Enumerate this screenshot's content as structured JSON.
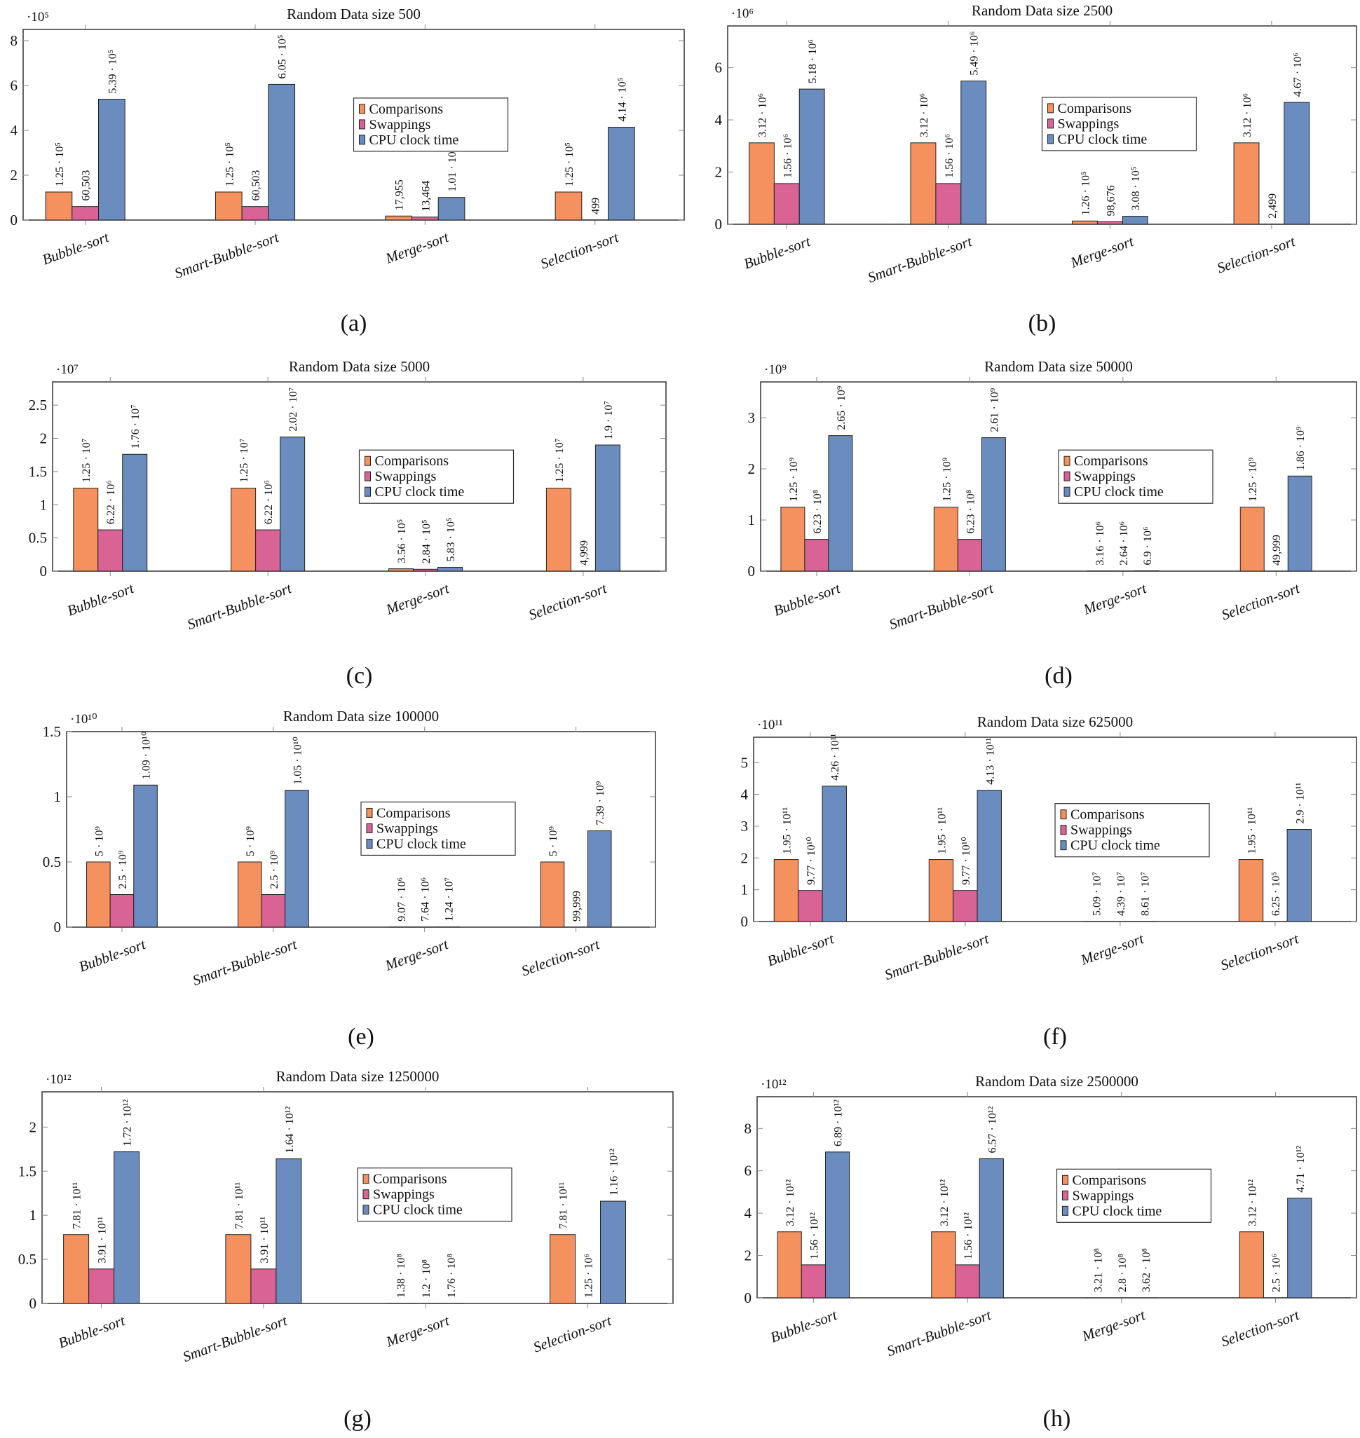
{
  "colors": {
    "Comparisons": "#f4915e",
    "Swappings": "#d96395",
    "CPU clock time": "#6a8cbf"
  },
  "chart_data": [
    {
      "type": "bar",
      "caption": "(a)",
      "title": "Random Data size 500",
      "multiplier": "·10⁵",
      "exp": 5,
      "ylim": [
        0,
        8.5
      ],
      "yticks": [
        "0",
        "2",
        "4",
        "6",
        "8"
      ],
      "grid": false,
      "legend": "center",
      "categories": [
        "Bubble-sort",
        "Smart-Bubble-sort",
        "Merge-sort",
        "Selection-sort"
      ],
      "series": [
        {
          "name": "Comparisons",
          "values": [
            125000,
            125000,
            17955,
            125000
          ],
          "labels": [
            "1.25 · 10⁵",
            "1.25 · 10⁵",
            "17,955",
            "1.25 · 10⁵"
          ]
        },
        {
          "name": "Swappings",
          "values": [
            60503,
            60503,
            13464,
            499
          ],
          "labels": [
            "60,503",
            "60,503",
            "13,464",
            "499"
          ]
        },
        {
          "name": "CPU clock time",
          "values": [
            539000,
            605000,
            101000,
            414000
          ],
          "labels": [
            "5.39 · 10⁵",
            "6.05 · 10⁵",
            "1.01 · 10⁵",
            "4.14 · 10⁵"
          ]
        }
      ]
    },
    {
      "type": "bar",
      "caption": "(b)",
      "title": "Random Data size 2500",
      "multiplier": "·10⁶",
      "exp": 6,
      "ylim": [
        0,
        7.6
      ],
      "yticks": [
        "0",
        "2",
        "4",
        "6"
      ],
      "grid": false,
      "legend": "center",
      "categories": [
        "Bubble-sort",
        "Smart-Bubble-sort",
        "Merge-sort",
        "Selection-sort"
      ],
      "series": [
        {
          "name": "Comparisons",
          "values": [
            3120000,
            3120000,
            126000,
            3120000
          ],
          "labels": [
            "3.12 · 10⁶",
            "3.12 · 10⁶",
            "1.26 · 10⁵",
            "3.12 · 10⁶"
          ]
        },
        {
          "name": "Swappings",
          "values": [
            1560000,
            1560000,
            98676,
            2499
          ],
          "labels": [
            "1.56 · 10⁶",
            "1.56 · 10⁶",
            "98,676",
            "2,499"
          ]
        },
        {
          "name": "CPU clock time",
          "values": [
            5180000,
            5490000,
            308000,
            4670000
          ],
          "labels": [
            "5.18 · 10⁶",
            "5.49 · 10⁶",
            "3.08 · 10⁵",
            "4.67 · 10⁶"
          ]
        }
      ]
    },
    {
      "type": "bar",
      "caption": "(c)",
      "title": "Random Data size 5000",
      "multiplier": "·10⁷",
      "exp": 7,
      "ylim": [
        0,
        2.85
      ],
      "yticks": [
        "0",
        "0.5",
        "1",
        "1.5",
        "2",
        "2.5"
      ],
      "grid": false,
      "legend": "center",
      "categories": [
        "Bubble-sort",
        "Smart-Bubble-sort",
        "Merge-sort",
        "Selection-sort"
      ],
      "series": [
        {
          "name": "Comparisons",
          "values": [
            12500000,
            12500000,
            356000,
            12500000
          ],
          "labels": [
            "1.25 · 10⁷",
            "1.25 · 10⁷",
            "3.56 · 10⁵",
            "1.25 · 10⁷"
          ]
        },
        {
          "name": "Swappings",
          "values": [
            6220000,
            6220000,
            284000,
            4999
          ],
          "labels": [
            "6.22 · 10⁶",
            "6.22 · 10⁶",
            "2.84 · 10⁵",
            "4,999"
          ]
        },
        {
          "name": "CPU clock time",
          "values": [
            17600000,
            20200000,
            583000,
            19000000
          ],
          "labels": [
            "1.76 · 10⁷",
            "2.02 · 10⁷",
            "5.83 · 10⁵",
            "1.9 · 10⁷"
          ]
        }
      ]
    },
    {
      "type": "bar",
      "caption": "(d)",
      "title": "Random Data size 50000",
      "multiplier": "·10⁹",
      "exp": 9,
      "ylim": [
        0,
        3.7
      ],
      "yticks": [
        "0",
        "1",
        "2",
        "3"
      ],
      "grid": false,
      "legend": "center",
      "categories": [
        "Bubble-sort",
        "Smart-Bubble-sort",
        "Merge-sort",
        "Selection-sort"
      ],
      "series": [
        {
          "name": "Comparisons",
          "values": [
            1250000000,
            1250000000,
            3160000,
            1250000000
          ],
          "labels": [
            "1.25 · 10⁹",
            "1.25 · 10⁹",
            "3.16 · 10⁶",
            "1.25 · 10⁹"
          ]
        },
        {
          "name": "Swappings",
          "values": [
            623000000,
            623000000,
            2640000,
            49999
          ],
          "labels": [
            "6.23 · 10⁸",
            "6.23 · 10⁸",
            "2.64 · 10⁶",
            "49,999"
          ]
        },
        {
          "name": "CPU clock time",
          "values": [
            2650000000,
            2610000000,
            6900000,
            1860000000
          ],
          "labels": [
            "2.65 · 10⁹",
            "2.61 · 10⁹",
            "6.9 · 10⁶",
            "1.86 · 10⁹"
          ]
        }
      ]
    },
    {
      "type": "bar",
      "caption": "(e)",
      "title": "Random Data size 100000",
      "multiplier": "·10¹⁰",
      "exp": 10,
      "ylim": [
        0,
        1.5
      ],
      "yticks": [
        "0",
        "0.5",
        "1",
        "1.5"
      ],
      "grid": false,
      "legend": "center",
      "categories": [
        "Bubble-sort",
        "Smart-Bubble-sort",
        "Merge-sort",
        "Selection-sort"
      ],
      "series": [
        {
          "name": "Comparisons",
          "values": [
            5000000000,
            5000000000,
            9070000,
            5000000000
          ],
          "labels": [
            "5 · 10⁹",
            "5 · 10⁹",
            "9.07 · 10⁶",
            "5 · 10⁹"
          ]
        },
        {
          "name": "Swappings",
          "values": [
            2500000000,
            2500000000,
            7640000,
            99999
          ],
          "labels": [
            "2.5 · 10⁹",
            "2.5 · 10⁹",
            "7.64 · 10⁶",
            "99,999"
          ]
        },
        {
          "name": "CPU clock time",
          "values": [
            10900000000,
            10500000000,
            12400000,
            7390000000
          ],
          "labels": [
            "1.09 · 10¹⁰",
            "1.05 · 10¹⁰",
            "1.24 · 10⁷",
            "7.39 · 10⁹"
          ]
        }
      ]
    },
    {
      "type": "bar",
      "caption": "(f)",
      "title": "Random Data size 625000",
      "multiplier": "·10¹¹",
      "exp": 11,
      "ylim": [
        0,
        5.8
      ],
      "yticks": [
        "0",
        "1",
        "2",
        "3",
        "4",
        "5"
      ],
      "grid": false,
      "legend": "center",
      "categories": [
        "Bubble-sort",
        "Smart-Bubble-sort",
        "Merge-sort",
        "Selection-sort"
      ],
      "series": [
        {
          "name": "Comparisons",
          "values": [
            195000000000,
            195000000000,
            50900000,
            195000000000
          ],
          "labels": [
            "1.95 · 10¹¹",
            "1.95 · 10¹¹",
            "5.09 · 10⁷",
            "1.95 · 10¹¹"
          ]
        },
        {
          "name": "Swappings",
          "values": [
            97700000000,
            97700000000,
            43900000,
            625000
          ],
          "labels": [
            "9.77 · 10¹⁰",
            "9.77 · 10¹⁰",
            "4.39 · 10⁷",
            "6.25 · 10⁵"
          ]
        },
        {
          "name": "CPU clock time",
          "values": [
            426000000000,
            413000000000,
            86100000,
            290000000000
          ],
          "labels": [
            "4.26 · 10¹¹",
            "4.13 · 10¹¹",
            "8.61 · 10⁷",
            "2.9 · 10¹¹"
          ]
        }
      ]
    },
    {
      "type": "bar",
      "caption": "(g)",
      "title": "Random Data size 1250000",
      "multiplier": "·10¹²",
      "exp": 12,
      "ylim": [
        0,
        2.4
      ],
      "yticks": [
        "0",
        "0.5",
        "1",
        "1.5",
        "2"
      ],
      "grid": false,
      "legend": "center",
      "categories": [
        "Bubble-sort",
        "Smart-Bubble-sort",
        "Merge-sort",
        "Selection-sort"
      ],
      "series": [
        {
          "name": "Comparisons",
          "values": [
            781000000000,
            781000000000,
            138000000,
            781000000000
          ],
          "labels": [
            "7.81 · 10¹¹",
            "7.81 · 10¹¹",
            "1.38 · 10⁸",
            "7.81 · 10¹¹"
          ]
        },
        {
          "name": "Swappings",
          "values": [
            391000000000,
            391000000000,
            120000000,
            1250000
          ],
          "labels": [
            "3.91 · 10¹¹",
            "3.91 · 10¹¹",
            "1.2 · 10⁸",
            "1.25 · 10⁶"
          ]
        },
        {
          "name": "CPU clock time",
          "values": [
            1720000000000,
            1640000000000,
            176000000,
            1160000000000
          ],
          "labels": [
            "1.72 · 10¹²",
            "1.64 · 10¹²",
            "1.76 · 10⁸",
            "1.16 · 10¹²"
          ]
        }
      ]
    },
    {
      "type": "bar",
      "caption": "(h)",
      "title": "Random Data size 2500000",
      "multiplier": "·10¹²",
      "exp": 12,
      "ylim": [
        0,
        9.5
      ],
      "yticks": [
        "0",
        "2",
        "4",
        "6",
        "8"
      ],
      "grid": false,
      "legend": "center",
      "categories": [
        "Bubble-sort",
        "Smart-Bubble-sort",
        "Merge-sort",
        "Selection-sort"
      ],
      "series": [
        {
          "name": "Comparisons",
          "values": [
            3120000000000,
            3120000000000,
            321000000,
            3120000000000
          ],
          "labels": [
            "3.12 · 10¹²",
            "3.12 · 10¹²",
            "3.21 · 10⁸",
            "3.12 · 10¹²"
          ]
        },
        {
          "name": "Swappings",
          "values": [
            1560000000000,
            1560000000000,
            280000000,
            2500000
          ],
          "labels": [
            "1.56 · 10¹²",
            "1.56 · 10¹²",
            "2.8 · 10⁸",
            "2.5 · 10⁶"
          ]
        },
        {
          "name": "CPU clock time",
          "values": [
            6890000000000,
            6570000000000,
            362000000,
            4710000000000
          ],
          "labels": [
            "6.89 · 10¹²",
            "6.57 · 10¹²",
            "3.62 · 10⁸",
            "4.71 · 10¹²"
          ]
        }
      ]
    }
  ]
}
